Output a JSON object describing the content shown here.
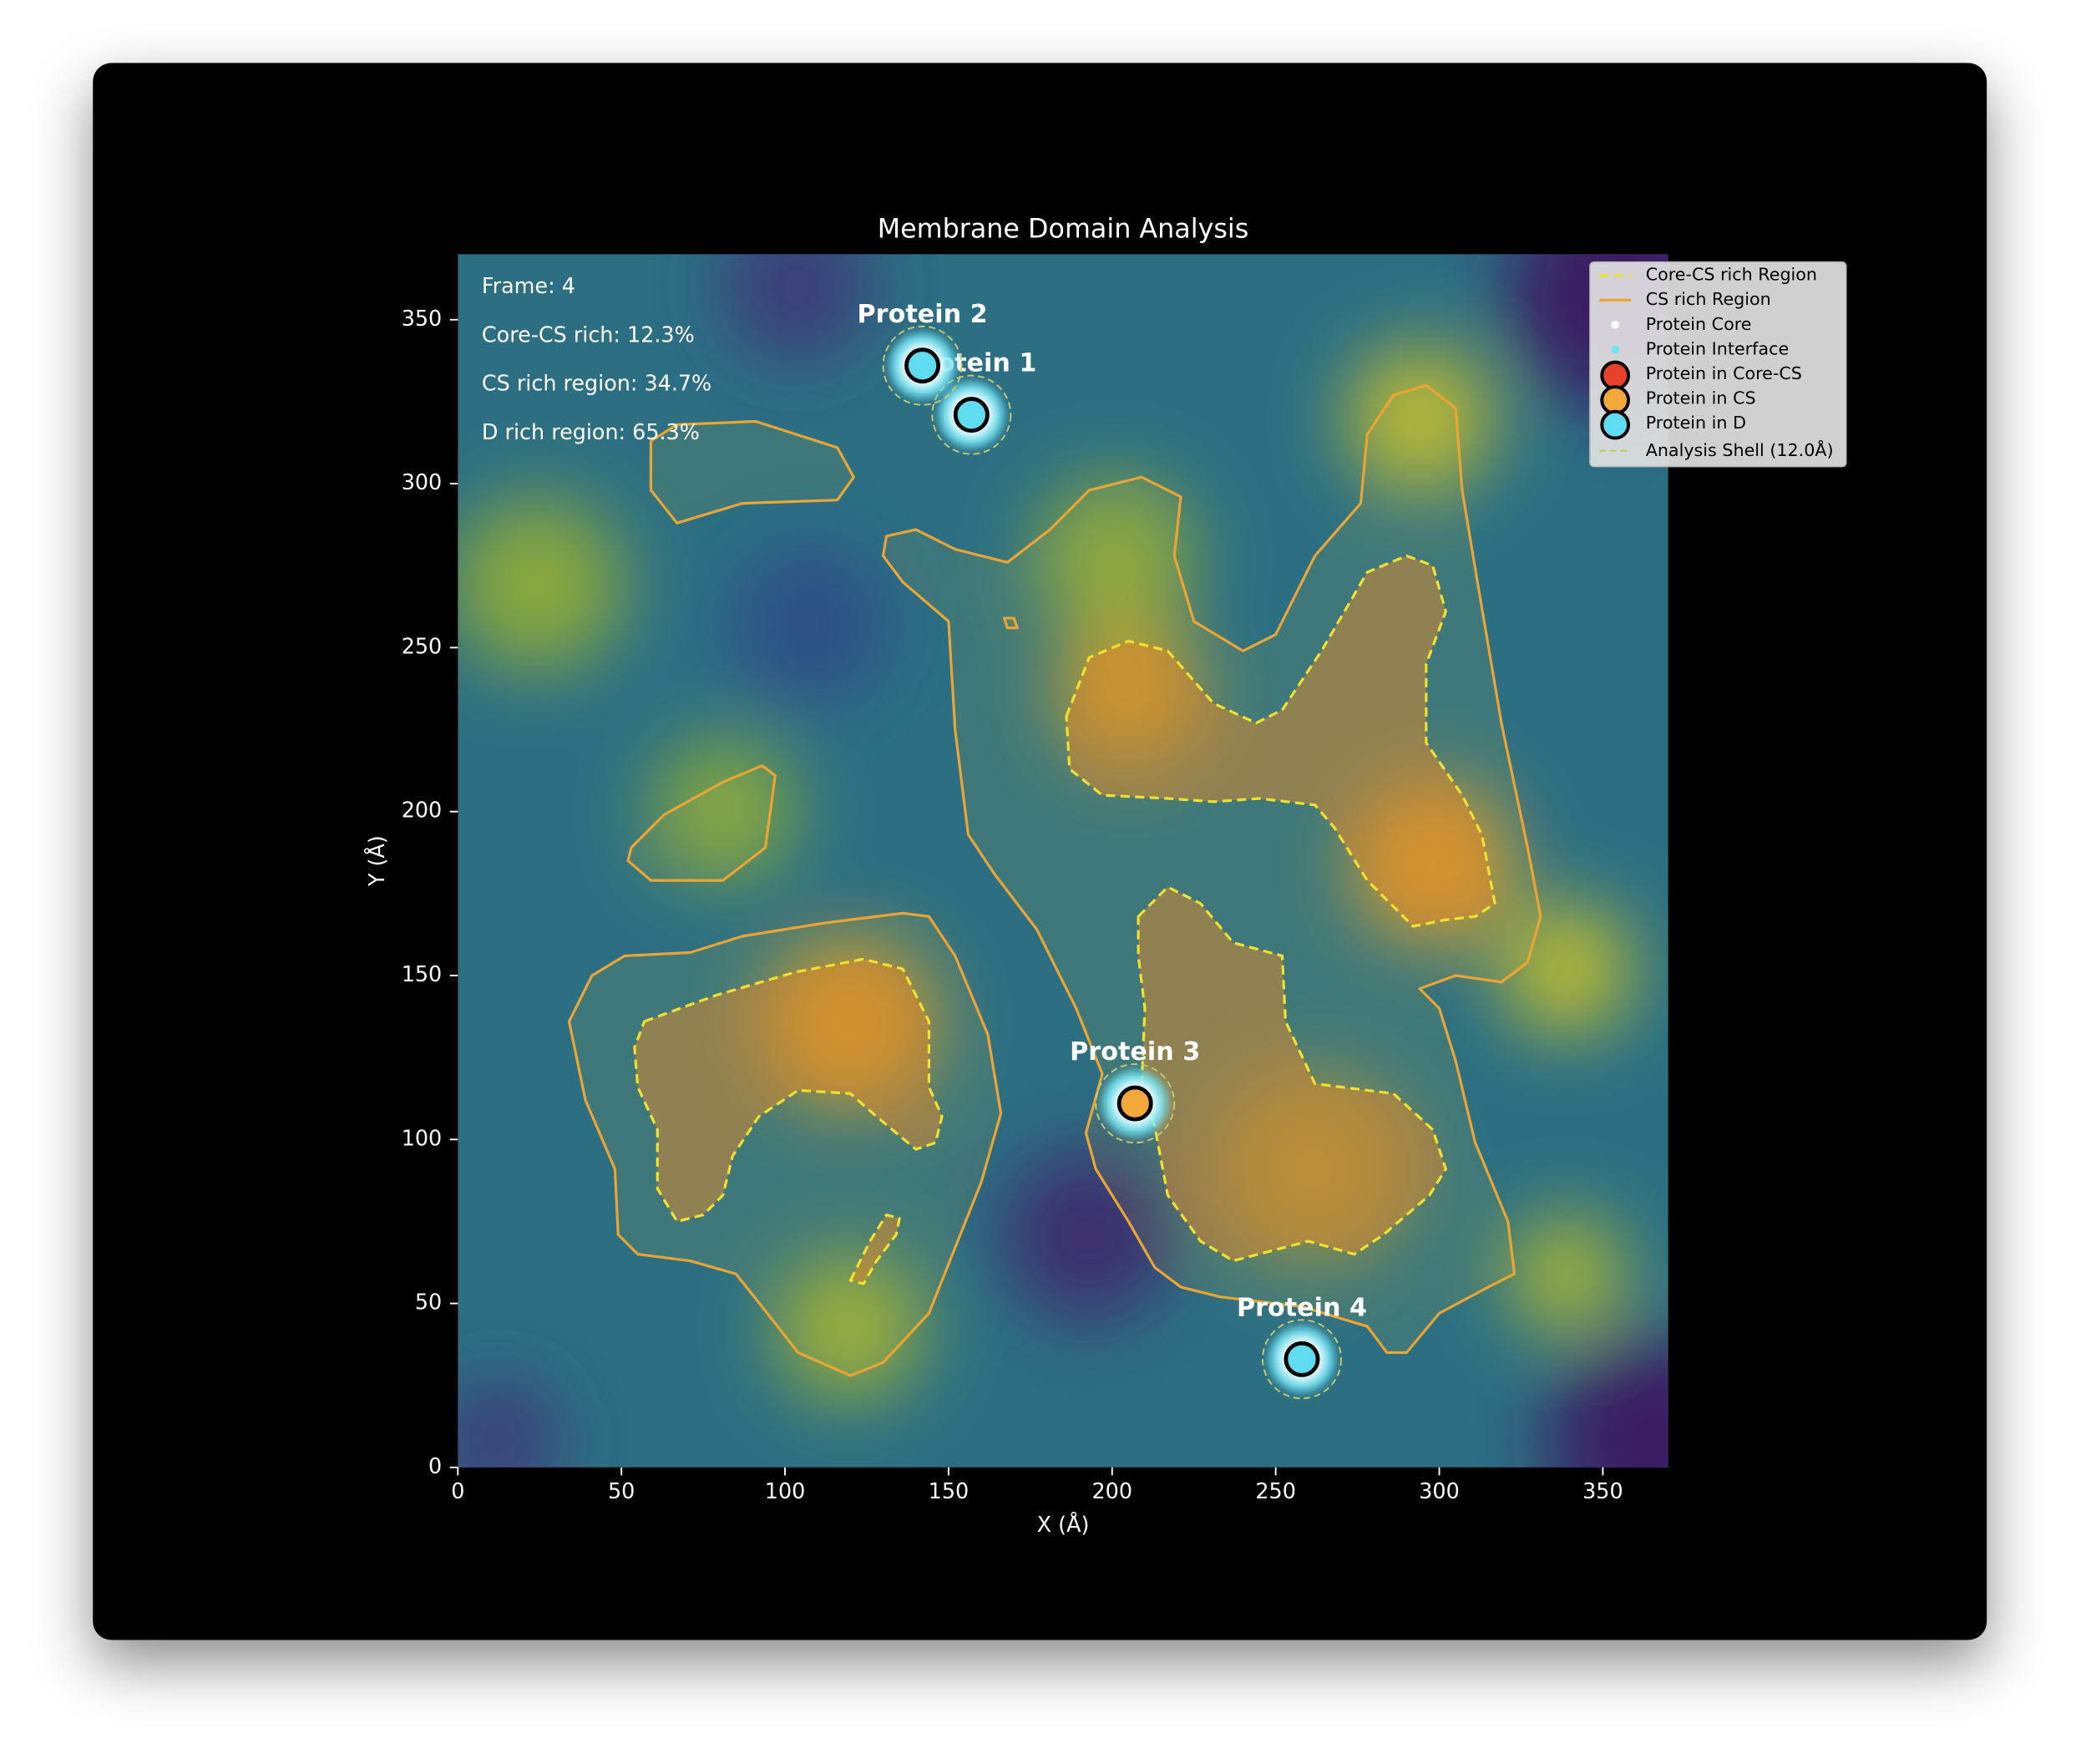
{
  "chart_data": {
    "type": "scatter",
    "title": "Membrane Domain Analysis",
    "x_label": "X (Å)",
    "y_label": "Y (Å)",
    "xlim": [
      0,
      370
    ],
    "ylim": [
      0,
      370
    ],
    "xticks": [
      0,
      50,
      100,
      150,
      200,
      250,
      300,
      350
    ],
    "yticks": [
      0,
      50,
      100,
      150,
      200,
      250,
      300,
      350
    ],
    "legend_location": "upper right",
    "annotations": [
      "Frame: 4",
      "Core-CS rich: 12.3%",
      "CS rich region: 34.7%",
      "D rich region: 65.3%"
    ],
    "regions": [
      {
        "name": "Core-CS rich Region",
        "color": "#f2e030",
        "style": "dashed",
        "contours": [
          {
            "x": [
              57,
              79,
              103,
              124,
              136,
              144,
              144,
              148,
              146,
              140,
              128,
              120,
              104,
              92,
              84,
              81,
              75,
              67,
              61,
              61,
              55,
              54
            ],
            "y": [
              136,
              144,
              151,
              155,
              152,
              136,
              116,
              107,
              99,
              97,
              107,
              114,
              115,
              107,
              95,
              83,
              77,
              75,
              85,
              103,
              116,
              128
            ]
          },
          {
            "x": [
              120,
              126,
              131,
              135,
              134,
              128,
              124
            ],
            "y": [
              57,
              69,
              77,
              76,
              71,
              63,
              56
            ]
          },
          {
            "x": [
              186,
              193,
              205,
              217,
              231,
              244,
              252,
              264,
              278,
              290,
              298,
              302,
              296,
              296,
              307,
              313,
              317,
              311,
              302,
              292,
              278,
              268,
              262,
              245,
              231,
              217,
              197,
              187
            ],
            "y": [
              229,
              247,
              252,
              249,
              233,
              227,
              231,
              249,
              273,
              278,
              275,
              261,
              245,
              221,
              205,
              193,
              172,
              168,
              167,
              165,
              179,
              195,
              202,
              204,
              203,
              204,
              205,
              213
            ]
          },
          {
            "x": [
              208,
              217,
              227,
              237,
              252,
              253,
              262,
              286,
              298,
              302,
              297,
              283,
              274,
              260,
              237,
              227,
              217,
              213,
              209,
              210,
              208
            ],
            "y": [
              168,
              177,
              172,
              160,
              156,
              136,
              117,
              114,
              103,
              91,
              83,
              71,
              65,
              69,
              63,
              69,
              83,
              104,
              116,
              140,
              156
            ]
          }
        ]
      },
      {
        "name": "CS rich Region",
        "color": "#eba535",
        "style": "solid",
        "contours": [
          {
            "x": [
              59,
              67,
              91,
              116,
              121,
              116,
              87,
              67,
              59
            ],
            "y": [
              313,
              318,
              319,
              311,
              302,
              295,
              294,
              288,
              298
            ]
          },
          {
            "x": [
              53,
              63,
              81,
              93,
              97,
              94,
              81,
              59,
              52
            ],
            "y": [
              189,
              199,
              209,
              214,
              211,
              189,
              179,
              179,
              185
            ]
          },
          {
            "x": [
              34,
              41,
              51,
              71,
              87,
              112,
              136,
              144,
              152,
              162,
              166,
              160,
              152,
              144,
              130,
              120,
              104,
              93,
              85,
              71,
              55,
              49,
              48,
              39
            ],
            "y": [
              136,
              150,
              156,
              157,
              162,
              166,
              169,
              168,
              156,
              132,
              108,
              87,
              67,
              47,
              32,
              28,
              35,
              49,
              59,
              63,
              65,
              71,
              91,
              112
            ]
          },
          {
            "x": [
              131,
              140,
              152,
              168,
              181,
              193,
              209,
              221,
              219,
              225,
              240,
              250,
              262,
              276,
              278,
              286,
              296,
              305,
              307,
              311,
              319,
              327,
              331,
              327,
              319,
              305,
              294,
              300,
              305,
              311,
              321,
              323,
              315,
              300,
              290,
              284,
              278,
              258,
              233,
              221,
              213,
              205,
              195,
              192,
              197,
              189,
              177,
              164,
              156,
              152,
              150,
              136,
              130
            ],
            "y": [
              284,
              286,
              280,
              276,
              286,
              298,
              302,
              296,
              278,
              258,
              249,
              254,
              278,
              294,
              315,
              327,
              330,
              323,
              298,
              274,
              227,
              189,
              168,
              154,
              148,
              150,
              146,
              140,
              124,
              99,
              75,
              59,
              55,
              47,
              35,
              35,
              43,
              49,
              52,
              55,
              61,
              75,
              91,
              102,
              120,
              140,
              164,
              181,
              193,
              225,
              258,
              270,
              278
            ]
          },
          {
            "x": [
              167,
              170,
              171,
              168
            ],
            "y": [
              259,
              259,
              256,
              256
            ]
          }
        ]
      }
    ],
    "markers": [
      {
        "name": "Protein Core",
        "color": "#ffffff"
      },
      {
        "name": "Protein Interface",
        "color": "#6fe3f3"
      }
    ],
    "series": [
      {
        "name": "Protein in Core-CS",
        "color": "#e8412b",
        "x": [],
        "y": [],
        "labels": []
      },
      {
        "name": "Protein in CS",
        "color": "#f5a83a",
        "x": [
          207
        ],
        "y": [
          111
        ],
        "labels": [
          "Protein 3"
        ]
      },
      {
        "name": "Protein in D",
        "color": "#5fdcf0",
        "x": [
          157,
          142,
          258
        ],
        "y": [
          321,
          336,
          33
        ],
        "labels": [
          "Protein 1",
          "Protein 2",
          "Protein 4"
        ]
      }
    ],
    "shell": {
      "name": "Analysis Shell (12.0Å)",
      "radius": 12,
      "color": "#c9c96a"
    }
  }
}
